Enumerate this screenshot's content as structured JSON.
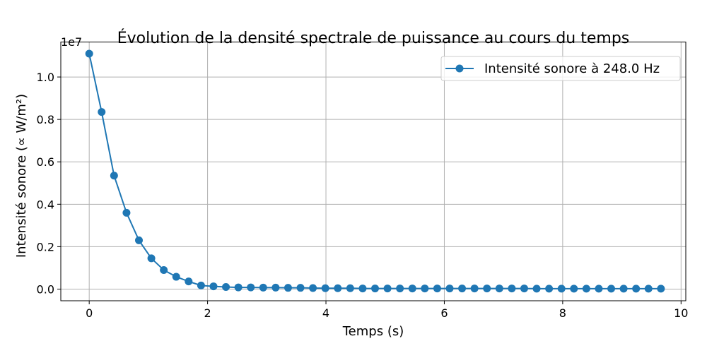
{
  "chart_data": {
    "type": "line",
    "title": "Évolution de la densité spectrale de puissance au cours du temps",
    "xlabel": "Temps (s)",
    "ylabel": "Intensité sonore (∝ W/m²)",
    "y_offset_label": "1e7",
    "xlim": [
      -0.48,
      10.08
    ],
    "ylim": [
      -0.055,
      1.165
    ],
    "y_scale_factor": 10000000,
    "xticks": [
      0,
      2,
      4,
      6,
      8,
      10
    ],
    "xtick_labels": [
      "0",
      "2",
      "4",
      "6",
      "8",
      "10"
    ],
    "yticks": [
      0.0,
      0.2,
      0.4,
      0.6,
      0.8,
      1.0
    ],
    "ytick_labels": [
      "0.0",
      "0.2",
      "0.4",
      "0.6",
      "0.8",
      "1.0"
    ],
    "grid": true,
    "legend_position": "top-right",
    "series": [
      {
        "name": "Intensité sonore à 248.0 Hz",
        "color": "#1f77b4",
        "marker": "circle",
        "x": [
          0.0,
          0.21,
          0.42,
          0.63,
          0.84,
          1.05,
          1.26,
          1.47,
          1.68,
          1.89,
          2.1,
          2.31,
          2.52,
          2.73,
          2.94,
          3.15,
          3.36,
          3.57,
          3.78,
          3.99,
          4.2,
          4.41,
          4.62,
          4.83,
          5.04,
          5.25,
          5.46,
          5.67,
          5.88,
          6.09,
          6.3,
          6.51,
          6.72,
          6.93,
          7.14,
          7.35,
          7.56,
          7.77,
          7.98,
          8.19,
          8.4,
          8.61,
          8.82,
          9.03,
          9.24,
          9.45,
          9.66
        ],
        "y": [
          1.11,
          0.835,
          0.535,
          0.36,
          0.23,
          0.145,
          0.09,
          0.058,
          0.036,
          0.017,
          0.013,
          0.01,
          0.008,
          0.008,
          0.007,
          0.007,
          0.006,
          0.006,
          0.005,
          0.004,
          0.004,
          0.004,
          0.003,
          0.003,
          0.003,
          0.003,
          0.003,
          0.003,
          0.003,
          0.003,
          0.003,
          0.003,
          0.003,
          0.003,
          0.003,
          0.003,
          0.002,
          0.002,
          0.002,
          0.002,
          0.002,
          0.002,
          0.002,
          0.002,
          0.002,
          0.002,
          0.002
        ]
      }
    ]
  }
}
